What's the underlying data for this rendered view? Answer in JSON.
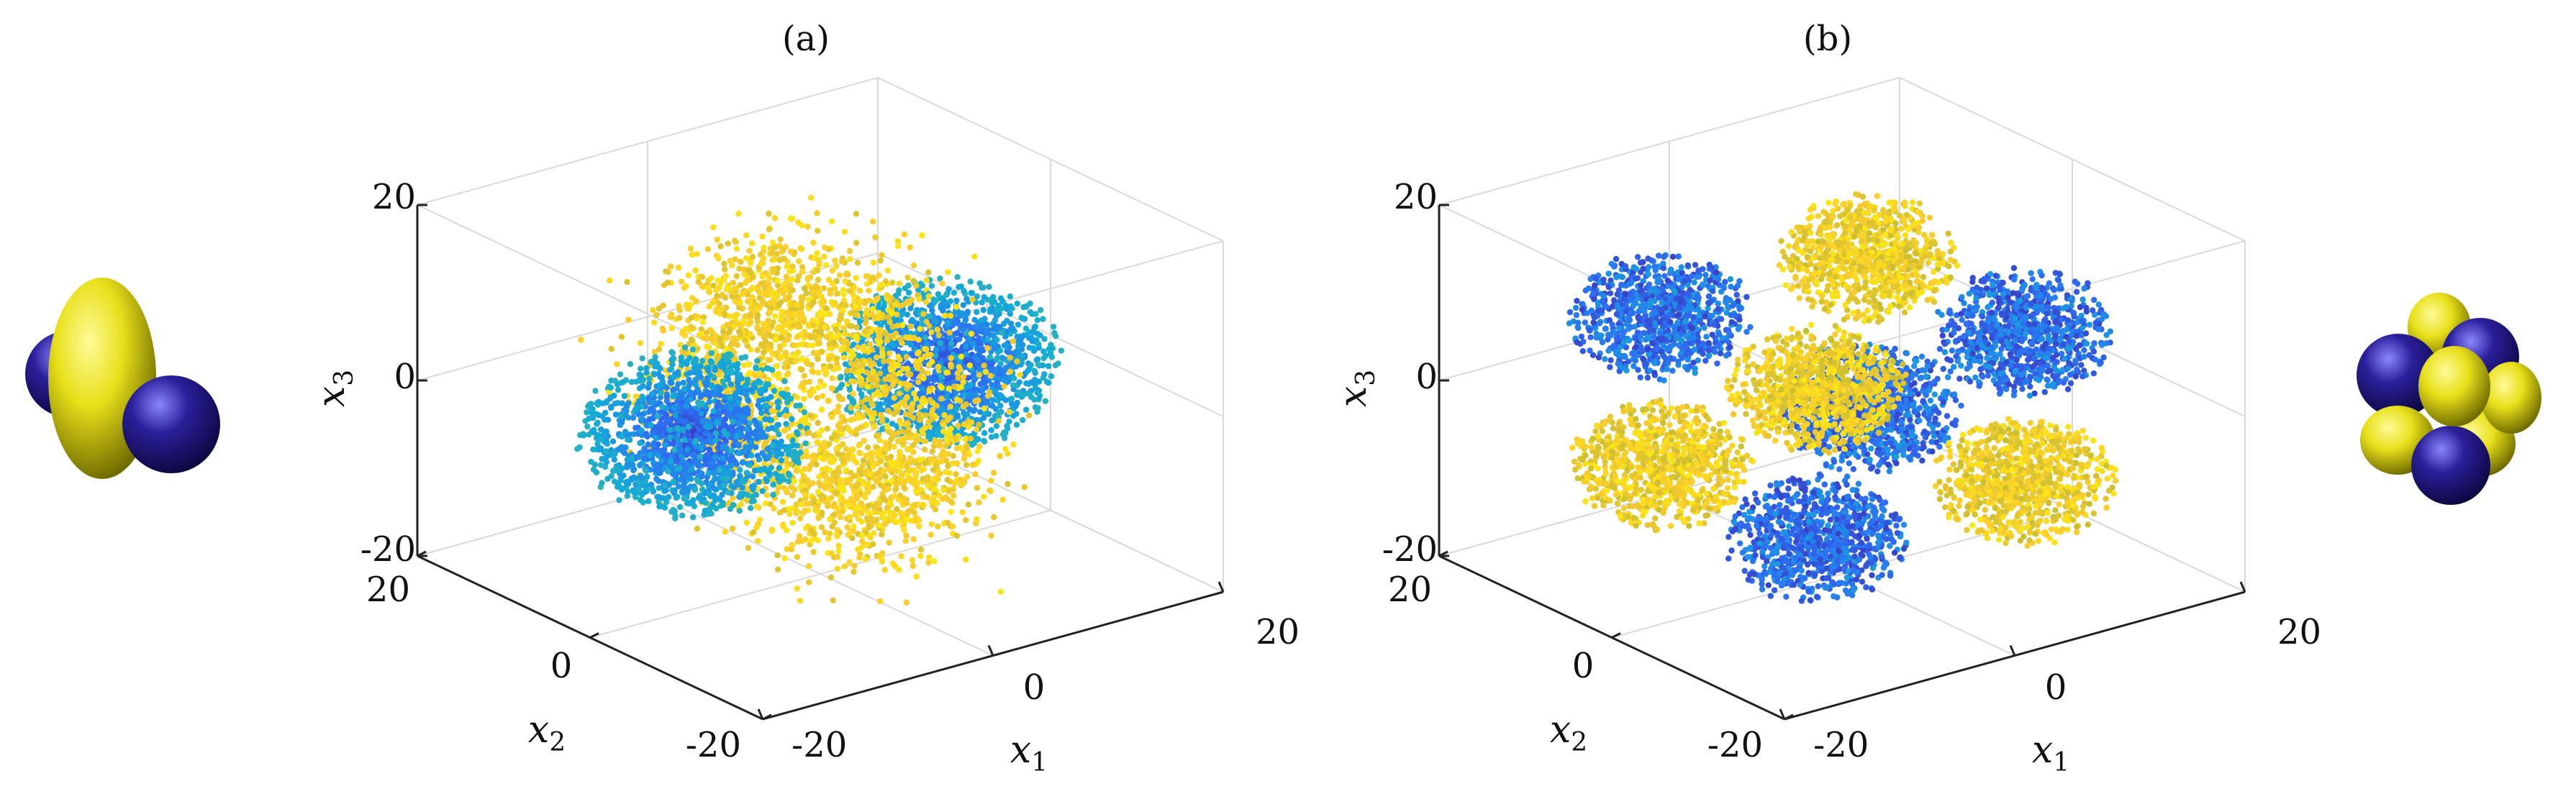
{
  "figure": {
    "panel_labels": [
      "(a)",
      "(b)"
    ]
  },
  "chart_data": [
    {
      "type": "scatter",
      "subtype": "3d-scatter",
      "panel": "(a)",
      "xlabel": "x1",
      "ylabel": "x2",
      "zlabel": "x3",
      "xlim": [
        -20,
        20
      ],
      "ylim": [
        -20,
        20
      ],
      "zlim": [
        -20,
        20
      ],
      "xticks": [
        "-20",
        "0",
        "20"
      ],
      "yticks": [
        "-20",
        "0",
        "20"
      ],
      "zticks": [
        "-20",
        "0",
        "20"
      ],
      "grid": true,
      "colormap": "parula",
      "colors": {
        "low": "#3b2fd0",
        "mid": "#1fa9d4",
        "high": "#f9d621"
      },
      "structure": "torus-shaped cloud: a yellow ring around the x1 axis with two blue lobes along x1 (d_z2-like orbital)",
      "ring_radius": 11,
      "lobe_center_x1": 11,
      "extent": 18,
      "inset_icon": "dz2-orbital-icon"
    },
    {
      "type": "scatter",
      "subtype": "3d-scatter",
      "panel": "(b)",
      "xlabel": "x1",
      "ylabel": "x2",
      "zlabel": "x3",
      "xlim": [
        -20,
        20
      ],
      "ylim": [
        -20,
        20
      ],
      "zlim": [
        -20,
        20
      ],
      "xticks": [
        "-20",
        "0",
        "20"
      ],
      "yticks": [
        "-20",
        "0",
        "20"
      ],
      "zticks": [
        "-20",
        "0",
        "20"
      ],
      "grid": true,
      "colormap": "parula",
      "colors": {
        "low": "#3b2fd0",
        "mid": "#1fa9d4",
        "high": "#f9d621"
      },
      "structure": "eight lobes in a cube arrangement with alternating blue and yellow colours (f_xyz-like orbital)",
      "lobe_offset": 9,
      "extent": 18,
      "inset_icon": "fxyz-orbital-icon"
    }
  ]
}
